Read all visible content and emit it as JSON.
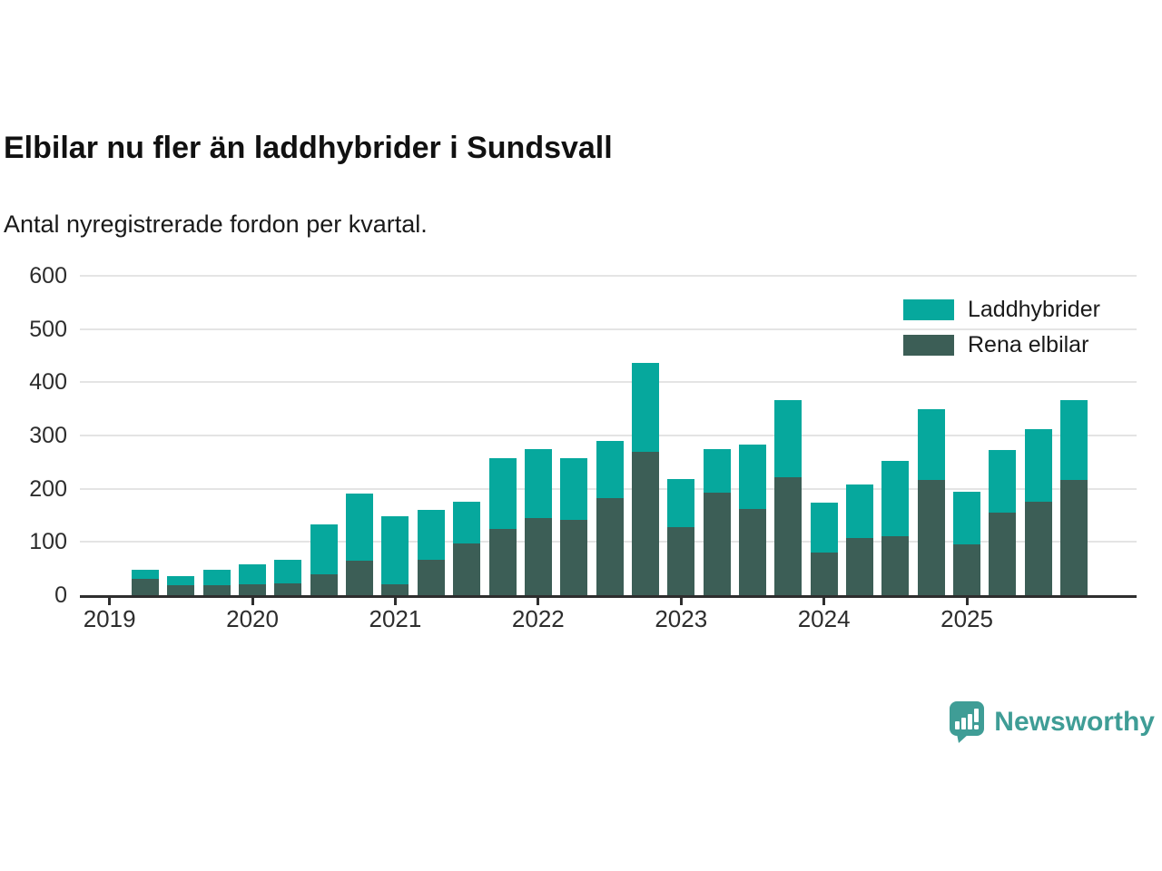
{
  "header": {
    "title": "Elbilar nu fler än laddhybrider i Sundsvall",
    "subtitle": "Antal nyregistrerade fordon per kvartal."
  },
  "chart_data": {
    "type": "bar",
    "stacked": true,
    "title": "Elbilar nu fler än laddhybrider i Sundsvall",
    "subtitle": "Antal nyregistrerade fordon per kvartal.",
    "x": [
      "2019-Q2",
      "2019-Q3",
      "2019-Q4",
      "2020-Q1",
      "2020-Q2",
      "2020-Q3",
      "2020-Q4",
      "2021-Q1",
      "2021-Q2",
      "2021-Q3",
      "2021-Q4",
      "2022-Q1",
      "2022-Q2",
      "2022-Q3",
      "2022-Q4",
      "2023-Q1",
      "2023-Q2",
      "2023-Q3",
      "2023-Q4",
      "2024-Q1",
      "2024-Q2",
      "2024-Q3",
      "2024-Q4",
      "2025-Q1",
      "2025-Q2",
      "2025-Q3",
      "2025-Q4"
    ],
    "series": [
      {
        "name": "Rena elbilar",
        "color": "#3c5e56",
        "values": [
          30,
          19,
          18,
          20,
          22,
          40,
          64,
          21,
          66,
          97,
          125,
          145,
          141,
          183,
          270,
          128,
          192,
          162,
          221,
          80,
          107,
          111,
          216,
          95,
          155,
          175,
          216
        ]
      },
      {
        "name": "Laddhybrider",
        "color": "#06a89d",
        "values": [
          17,
          17,
          30,
          38,
          45,
          93,
          127,
          128,
          94,
          79,
          133,
          129,
          117,
          107,
          166,
          91,
          82,
          121,
          146,
          94,
          101,
          142,
          134,
          100,
          118,
          137,
          151
        ]
      }
    ],
    "ylim": [
      0,
      600
    ],
    "yticks": [
      0,
      100,
      200,
      300,
      400,
      500,
      600
    ],
    "xticks": [
      {
        "label": "2019",
        "slot": -1
      },
      {
        "label": "2020",
        "slot": 3
      },
      {
        "label": "2021",
        "slot": 7
      },
      {
        "label": "2022",
        "slot": 11
      },
      {
        "label": "2023",
        "slot": 15
      },
      {
        "label": "2024",
        "slot": 19
      },
      {
        "label": "2025",
        "slot": 23
      }
    ],
    "grid": true,
    "legend_position": "top-right"
  },
  "legend": {
    "items": [
      {
        "label": "Laddhybrider",
        "color": "#06a89d"
      },
      {
        "label": "Rena elbilar",
        "color": "#3c5e56"
      }
    ]
  },
  "footer": {
    "brand": "Newsworthy",
    "logo_color": "#3f9d96"
  }
}
